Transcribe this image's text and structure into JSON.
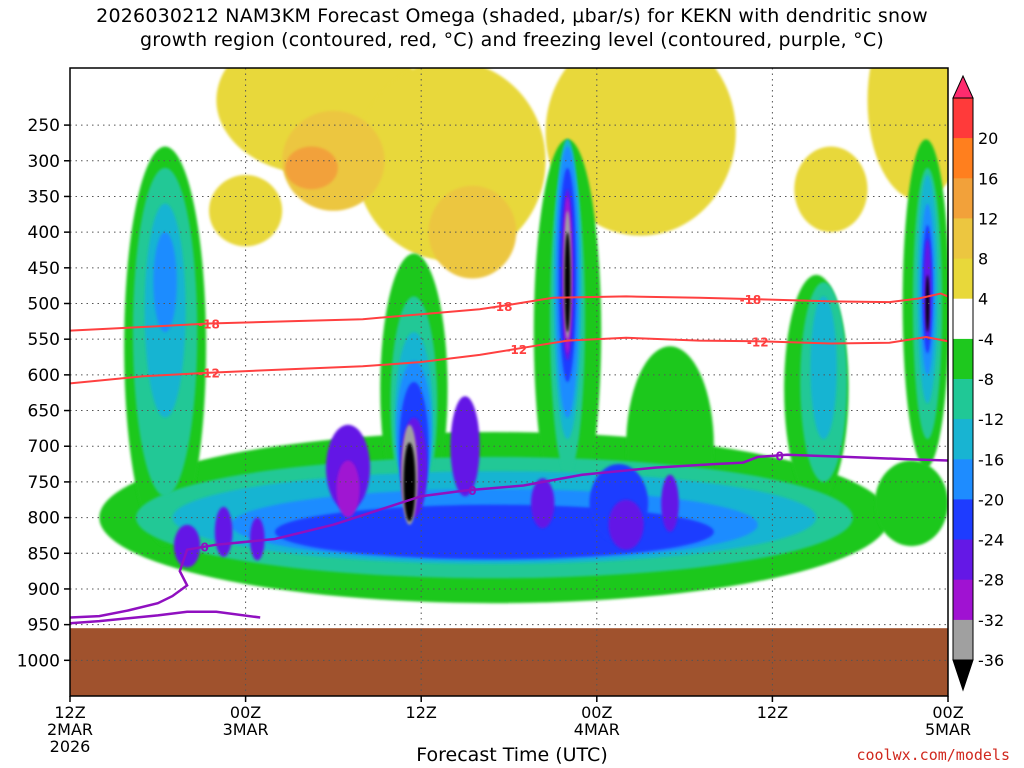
{
  "title_line1": "2026030212 NAM3KM Forecast Omega (shaded, μbar/s) for KEKN with dendritic snow",
  "title_line2": "growth region (contoured, red, °C) and freezing level (contoured, purple, °C)",
  "credit": "coolwx.com/models",
  "chart_data": {
    "type": "heatmap",
    "xlabel": "Forecast Time (UTC)",
    "ylabel": "",
    "y_axis": {
      "ticks": [
        250,
        300,
        350,
        400,
        450,
        500,
        550,
        600,
        650,
        700,
        750,
        800,
        850,
        900,
        950,
        1000
      ],
      "range": [
        170,
        1050
      ]
    },
    "x_axis": {
      "range_hours": [
        0,
        60
      ],
      "ticks": [
        {
          "hour": 0,
          "lines": [
            "12Z",
            "2MAR",
            "2026"
          ]
        },
        {
          "hour": 12,
          "lines": [
            "00Z",
            "3MAR"
          ]
        },
        {
          "hour": 24,
          "lines": [
            "12Z"
          ]
        },
        {
          "hour": 36,
          "lines": [
            "00Z",
            "4MAR"
          ]
        },
        {
          "hour": 48,
          "lines": [
            "12Z"
          ]
        },
        {
          "hour": 60,
          "lines": [
            "00Z",
            "5MAR"
          ]
        }
      ]
    },
    "colorbar": {
      "labels": [
        "20",
        "16",
        "12",
        "8",
        "4",
        "-4",
        "-8",
        "-12",
        "-16",
        "-20",
        "-24",
        "-28",
        "-32",
        "-36"
      ],
      "colors": [
        "#ff2b6e",
        "#ff3a3a",
        "#ff7f1e",
        "#f2a13a",
        "#ecc640",
        "#e8d83a",
        "#ffffff",
        "#1ec81e",
        "#20c896",
        "#18b4d2",
        "#1e8cff",
        "#1e3cff",
        "#6418e6",
        "#a012d2",
        "#a0a0a0",
        "#000000"
      ]
    },
    "contours_red": [
      {
        "label": "-18",
        "label_hours": [
          9.5,
          29.5,
          46.5
        ]
      },
      {
        "label": "-12",
        "label_hours": [
          9.5,
          30.5,
          47
        ]
      }
    ],
    "contours_purple": [
      {
        "label": "0",
        "label_hours": [
          9.2,
          27.5,
          48.5
        ]
      }
    ],
    "terrain_color": "#a0522d"
  }
}
